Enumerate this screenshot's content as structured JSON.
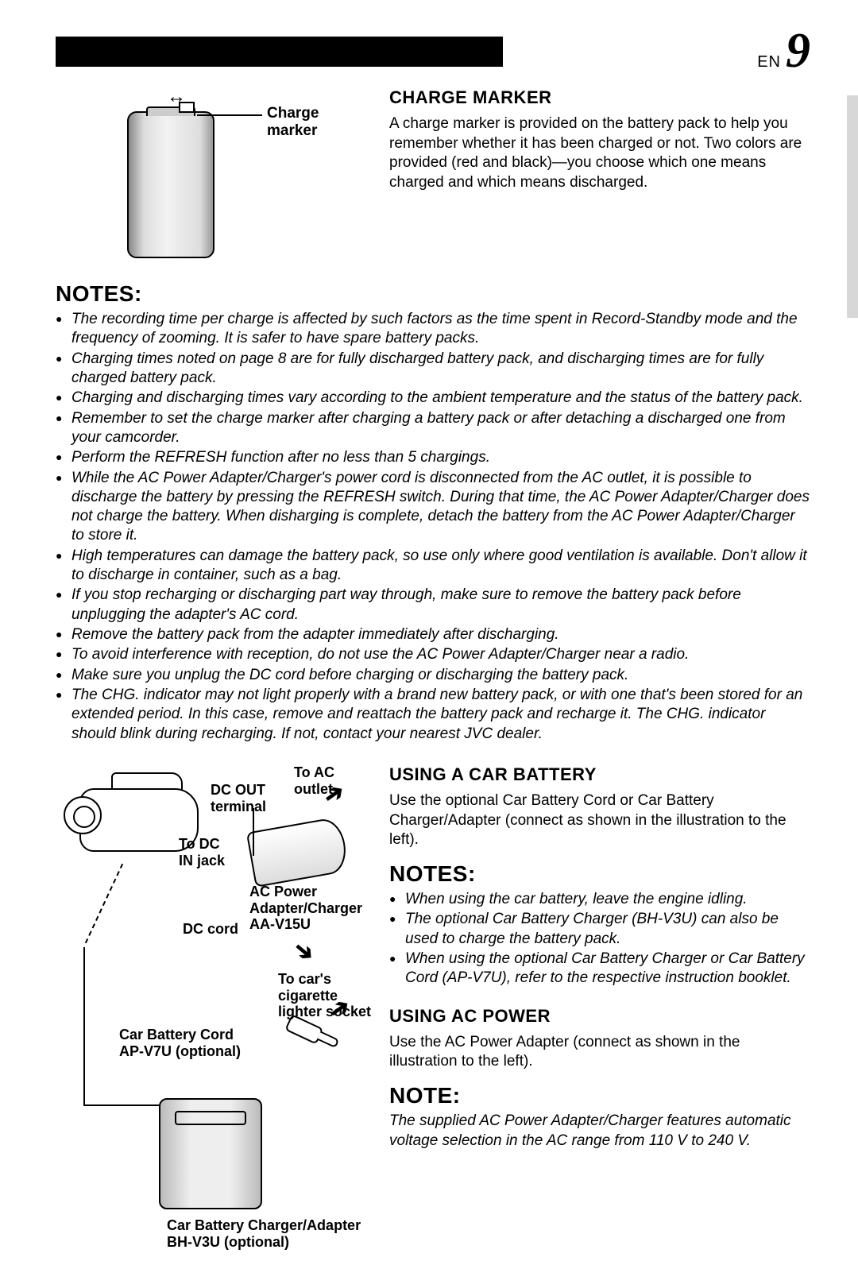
{
  "page": {
    "lang": "EN",
    "number": "9"
  },
  "fig1": {
    "label": "Charge marker"
  },
  "chargeMarker": {
    "title": "CHARGE MARKER",
    "body": "A charge marker is provided on the battery pack to help you remember whether it has been charged or not. Two colors are provided (red and black)—you choose which one means charged and which means discharged."
  },
  "notesMain": {
    "heading": "NOTES:",
    "items": [
      "The recording time per charge is affected by such factors as the time spent in Record-Standby mode and the frequency of zooming. It is safer to have spare battery packs.",
      "Charging times noted on page 8 are for fully discharged battery pack, and discharging times are for fully charged battery pack.",
      "Charging and discharging times vary according to the ambient temperature and the status of the battery pack.",
      "Remember to set the charge marker after charging a battery pack or after detaching a discharged one from your camcorder.",
      "Perform the REFRESH function after no less than 5 chargings.",
      "While the AC Power Adapter/Charger's power cord is disconnected from the AC outlet, it is possible to discharge the battery by pressing the REFRESH switch. During that time, the AC Power Adapter/Charger does not charge the battery. When disharging is complete, detach the battery from the AC Power Adapter/Charger to store it.",
      "High temperatures can damage the battery pack, so use only where good ventilation is available. Don't allow it to discharge in container, such as a bag.",
      "If you stop recharging or discharging part way through, make sure to remove the battery pack before unplugging the adapter's AC cord.",
      "Remove the battery pack from the adapter immediately after discharging.",
      "To avoid interference with reception, do not use the AC Power Adapter/Charger near a radio.",
      "Make sure you unplug the DC cord before charging or discharging the battery pack.",
      "The CHG. indicator may not light properly with a brand new battery pack, or with one that's been stored for an extended period. In this case, remove and reattach the battery pack and recharge it. The CHG. indicator should blink during recharging. If not, contact your nearest JVC dealer."
    ]
  },
  "fig2": {
    "toAcOutlet": "To AC outlet",
    "dcOutTerminal": "DC OUT\nterminal",
    "toDcInJack": "To DC\nIN jack",
    "acAdapter": "AC Power\nAdapter/Charger\nAA-V15U",
    "dcCord": "DC cord",
    "toCarSocket": "To car's\ncigarette\nlighter socket",
    "carBatteryCord": "Car Battery Cord\nAP-V7U (optional)",
    "carBatteryCharger": "Car Battery Charger/Adapter\nBH-V3U (optional)"
  },
  "carBattery": {
    "title": "USING A CAR BATTERY",
    "body": "Use the optional Car Battery Cord or Car Battery Charger/Adapter (connect as shown in the illustration to the left)."
  },
  "notesCar": {
    "heading": "NOTES:",
    "items": [
      "When using the car battery, leave the engine idling.",
      "The optional Car Battery Charger (BH-V3U) can also be used to charge the battery pack.",
      "When using the optional Car Battery Charger or Car Battery Cord (AP-V7U), refer to the respective instruction booklet."
    ]
  },
  "acPower": {
    "title": "USING AC POWER",
    "body": "Use the AC Power Adapter (connect as shown in the illustration to the left)."
  },
  "noteAc": {
    "heading": "NOTE:",
    "body": "The supplied AC Power Adapter/Charger features automatic voltage selection in the AC range from 110 V to 240 V."
  }
}
